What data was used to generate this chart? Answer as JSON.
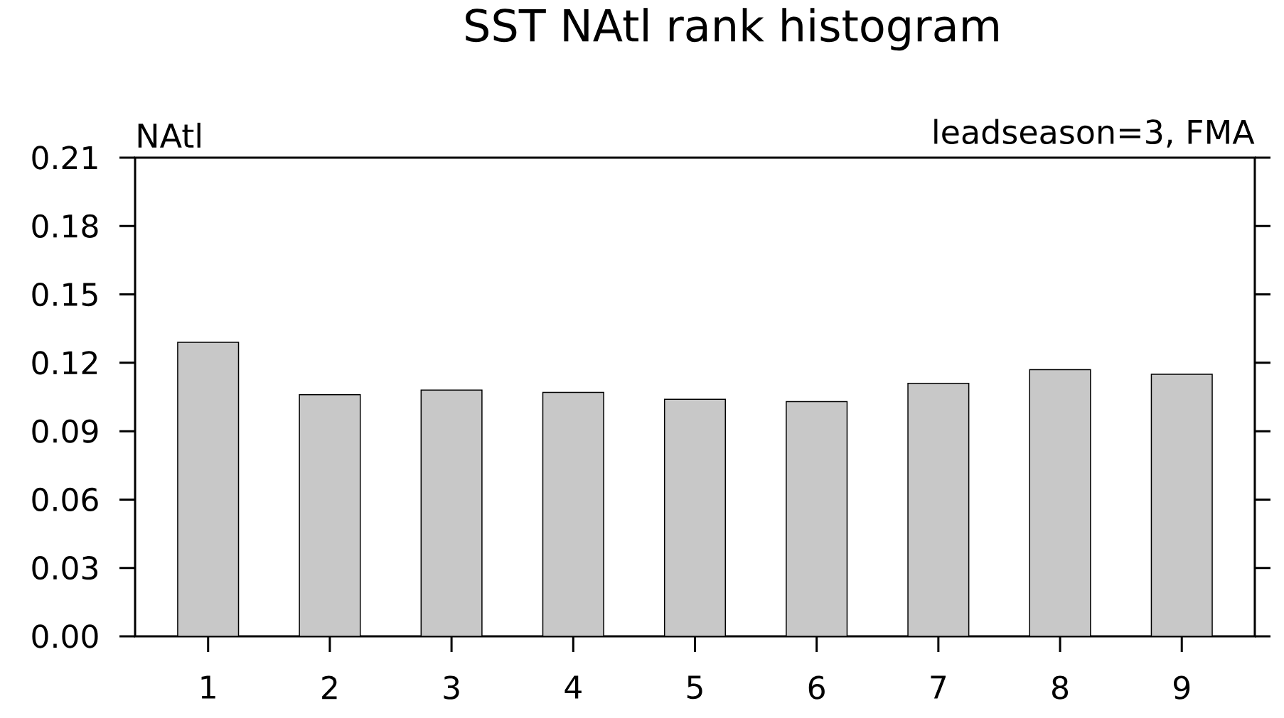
{
  "chart_data": {
    "type": "bar",
    "title": "SST NAtl rank histogram",
    "annotations": [
      "NAtl",
      "leadseason=3, FMA"
    ],
    "categories": [
      "1",
      "2",
      "3",
      "4",
      "5",
      "6",
      "7",
      "8",
      "9"
    ],
    "values": [
      0.129,
      0.106,
      0.108,
      0.107,
      0.104,
      0.103,
      0.111,
      0.117,
      0.115
    ],
    "color": "#c8c8c8",
    "ylim": [
      0,
      0.21
    ],
    "yticks": [
      {
        "value": 0,
        "label": "0.00"
      },
      {
        "value": 0.03,
        "label": "0.03"
      },
      {
        "value": 0.06,
        "label": "0.06"
      },
      {
        "value": 0.09,
        "label": "0.09"
      },
      {
        "value": 0.12,
        "label": "0.12"
      },
      {
        "value": 0.15,
        "label": "0.15"
      },
      {
        "value": 0.18,
        "label": "0.18"
      },
      {
        "value": 0.21,
        "label": "0.21"
      }
    ]
  }
}
